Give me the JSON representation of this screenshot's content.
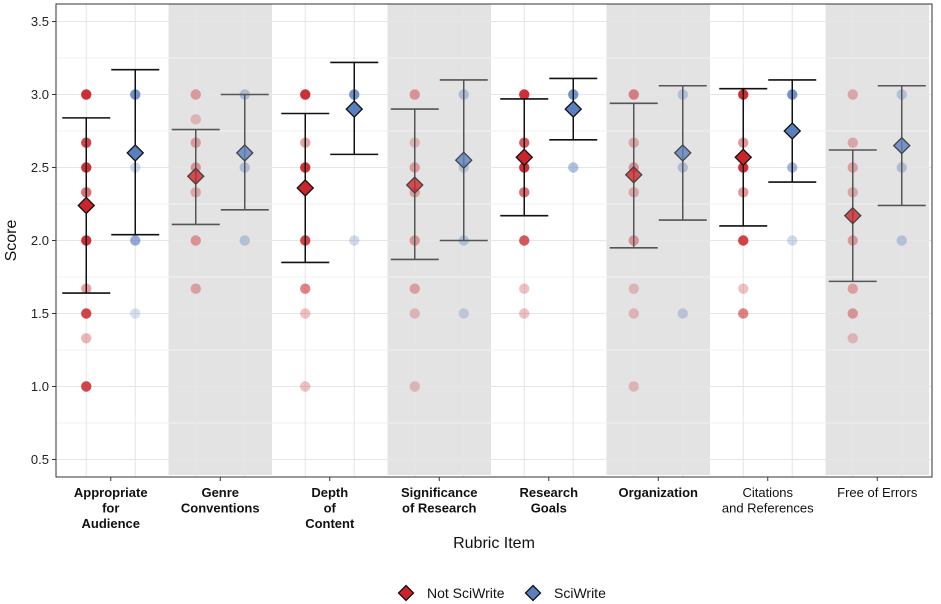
{
  "chart_data": {
    "type": "scatter",
    "xlabel": "Rubric Item",
    "ylabel": "Score",
    "ylim": [
      0.38,
      3.62
    ],
    "yticks": [
      0.5,
      1.0,
      1.5,
      2.0,
      2.5,
      3.0,
      3.5
    ],
    "ytick_labels": [
      "0.5",
      "1.0",
      "1.5",
      "2.0",
      "2.5",
      "3.0",
      "3.5"
    ],
    "grid": true,
    "legend_position": "bottom",
    "colors": {
      "not_sciwrite": "#c9252b",
      "sciwrite": "#5b7fbe",
      "shaded_band": "#e3e3e3",
      "grid": "#e6e6e6"
    },
    "series": [
      {
        "key": "not_sciwrite",
        "name": "Not SciWrite"
      },
      {
        "key": "sciwrite",
        "name": "SciWrite"
      }
    ],
    "categories": [
      {
        "label": [
          "Appropriate",
          "for",
          "Audience"
        ],
        "bold": true,
        "shaded": false,
        "not_sciwrite": {
          "mean": 2.24,
          "lower": 1.64,
          "upper": 2.84,
          "points": [
            [
              3.0,
              1.0
            ],
            [
              2.67,
              0.9
            ],
            [
              2.5,
              1.0
            ],
            [
              2.33,
              0.7
            ],
            [
              2.0,
              1.0
            ],
            [
              1.67,
              0.45
            ],
            [
              1.5,
              0.9
            ],
            [
              1.33,
              0.35
            ],
            [
              1.0,
              0.9
            ]
          ]
        },
        "sciwrite": {
          "mean": 2.6,
          "lower": 2.04,
          "upper": 3.17,
          "points": [
            [
              3.0,
              0.9
            ],
            [
              2.5,
              0.3
            ],
            [
              2.0,
              0.7
            ],
            [
              1.5,
              0.25
            ]
          ]
        }
      },
      {
        "label": [
          "Genre",
          "Conventions"
        ],
        "bold": true,
        "shaded": true,
        "not_sciwrite": {
          "mean": 2.44,
          "lower": 2.11,
          "upper": 2.76,
          "points": [
            [
              3.0,
              0.55
            ],
            [
              2.83,
              0.35
            ],
            [
              2.67,
              0.55
            ],
            [
              2.5,
              0.6
            ],
            [
              2.33,
              0.45
            ],
            [
              2.0,
              0.6
            ],
            [
              1.67,
              0.5
            ]
          ]
        },
        "sciwrite": {
          "mean": 2.6,
          "lower": 2.21,
          "upper": 3.0,
          "points": [
            [
              3.0,
              0.55
            ],
            [
              2.5,
              0.55
            ],
            [
              2.0,
              0.5
            ]
          ]
        }
      },
      {
        "label": [
          "Depth",
          "of",
          "Content"
        ],
        "bold": true,
        "shaded": false,
        "not_sciwrite": {
          "mean": 2.36,
          "lower": 1.85,
          "upper": 2.87,
          "points": [
            [
              3.0,
              1.0
            ],
            [
              2.67,
              0.45
            ],
            [
              2.5,
              1.0
            ],
            [
              2.0,
              0.9
            ],
            [
              1.67,
              0.6
            ],
            [
              1.5,
              0.3
            ],
            [
              1.0,
              0.3
            ]
          ]
        },
        "sciwrite": {
          "mean": 2.9,
          "lower": 2.59,
          "upper": 3.22,
          "points": [
            [
              3.0,
              0.9
            ],
            [
              2.0,
              0.3
            ]
          ]
        }
      },
      {
        "label": [
          "Significance",
          "of Research"
        ],
        "bold": true,
        "shaded": true,
        "not_sciwrite": {
          "mean": 2.38,
          "lower": 1.87,
          "upper": 2.9,
          "points": [
            [
              3.0,
              0.6
            ],
            [
              2.67,
              0.35
            ],
            [
              2.5,
              0.55
            ],
            [
              2.33,
              0.5
            ],
            [
              2.0,
              0.6
            ],
            [
              1.67,
              0.5
            ],
            [
              1.5,
              0.35
            ],
            [
              1.0,
              0.35
            ]
          ]
        },
        "sciwrite": {
          "mean": 2.55,
          "lower": 2.0,
          "upper": 3.1,
          "points": [
            [
              3.0,
              0.55
            ],
            [
              2.5,
              0.45
            ],
            [
              2.0,
              0.5
            ],
            [
              1.5,
              0.4
            ]
          ]
        }
      },
      {
        "label": [
          "Research",
          "Goals"
        ],
        "bold": true,
        "shaded": false,
        "not_sciwrite": {
          "mean": 2.57,
          "lower": 2.17,
          "upper": 2.97,
          "points": [
            [
              3.0,
              1.0
            ],
            [
              2.67,
              0.8
            ],
            [
              2.5,
              1.0
            ],
            [
              2.33,
              0.7
            ],
            [
              2.0,
              0.8
            ],
            [
              1.67,
              0.3
            ],
            [
              1.5,
              0.3
            ]
          ]
        },
        "sciwrite": {
          "mean": 2.9,
          "lower": 2.69,
          "upper": 3.11,
          "points": [
            [
              3.0,
              0.9
            ],
            [
              2.5,
              0.5
            ]
          ]
        }
      },
      {
        "label": [
          "Organization"
        ],
        "bold": true,
        "shaded": true,
        "not_sciwrite": {
          "mean": 2.45,
          "lower": 1.95,
          "upper": 2.94,
          "points": [
            [
              3.0,
              0.75
            ],
            [
              2.67,
              0.45
            ],
            [
              2.5,
              0.6
            ],
            [
              2.33,
              0.45
            ],
            [
              2.0,
              0.6
            ],
            [
              1.67,
              0.35
            ],
            [
              1.5,
              0.35
            ],
            [
              1.0,
              0.35
            ]
          ]
        },
        "sciwrite": {
          "mean": 2.6,
          "lower": 2.14,
          "upper": 3.06,
          "points": [
            [
              3.0,
              0.5
            ],
            [
              2.5,
              0.55
            ],
            [
              1.5,
              0.45
            ]
          ]
        }
      },
      {
        "label": [
          "Citations",
          "and References"
        ],
        "bold": false,
        "shaded": false,
        "not_sciwrite": {
          "mean": 2.57,
          "lower": 2.1,
          "upper": 3.04,
          "points": [
            [
              3.0,
              1.0
            ],
            [
              2.67,
              0.5
            ],
            [
              2.5,
              1.0
            ],
            [
              2.33,
              0.5
            ],
            [
              2.0,
              0.9
            ],
            [
              1.67,
              0.3
            ],
            [
              1.5,
              0.6
            ]
          ]
        },
        "sciwrite": {
          "mean": 2.75,
          "lower": 2.4,
          "upper": 3.1,
          "points": [
            [
              3.0,
              0.9
            ],
            [
              2.5,
              0.6
            ],
            [
              2.0,
              0.3
            ]
          ]
        }
      },
      {
        "label": [
          "Free of Errors"
        ],
        "bold": false,
        "shaded": true,
        "not_sciwrite": {
          "mean": 2.17,
          "lower": 1.72,
          "upper": 2.62,
          "points": [
            [
              3.0,
              0.45
            ],
            [
              2.67,
              0.45
            ],
            [
              2.5,
              0.5
            ],
            [
              2.33,
              0.45
            ],
            [
              2.0,
              0.55
            ],
            [
              1.67,
              0.5
            ],
            [
              1.5,
              0.6
            ],
            [
              1.33,
              0.35
            ]
          ]
        },
        "sciwrite": {
          "mean": 2.65,
          "lower": 2.24,
          "upper": 3.06,
          "points": [
            [
              3.0,
              0.5
            ],
            [
              2.5,
              0.55
            ],
            [
              2.0,
              0.5
            ]
          ]
        }
      }
    ]
  }
}
